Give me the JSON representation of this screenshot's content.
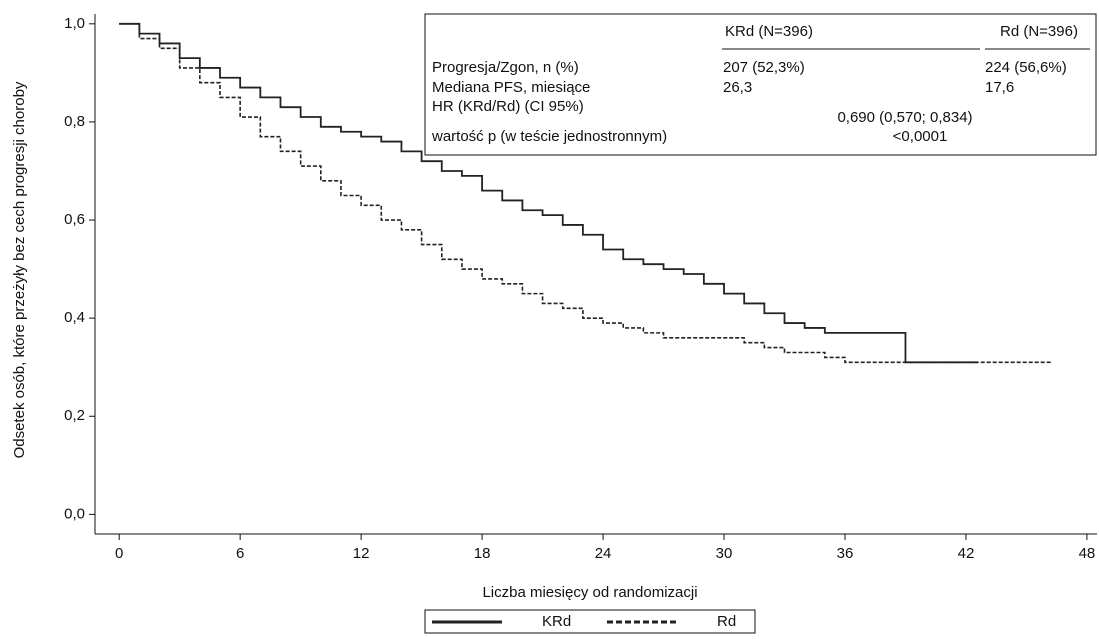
{
  "chart_data": {
    "type": "step",
    "ylabel": "Odsetek osób, które przeżyły bez cech progresji choroby",
    "xlabel": "Liczba miesięcy od randomizacji",
    "xlim": [
      -1.2,
      48.5
    ],
    "ylim": [
      -0.04,
      1.02
    ],
    "xticks": [
      0,
      6,
      12,
      18,
      24,
      30,
      36,
      42,
      48
    ],
    "yticks": [
      {
        "value": 0,
        "label": "0,0"
      },
      {
        "value": 0.2,
        "label": "0,2"
      },
      {
        "value": 0.4,
        "label": "0,4"
      },
      {
        "value": 0.6,
        "label": "0,6"
      },
      {
        "value": 0.8,
        "label": "0,8"
      },
      {
        "value": 1,
        "label": "1,0"
      }
    ],
    "series": [
      {
        "name": "KRd",
        "color": "#222222",
        "dash": "solid",
        "x": [
          0,
          1,
          2,
          3,
          4,
          5,
          6,
          7,
          8,
          9,
          10,
          11,
          12,
          13,
          14,
          15,
          16,
          17,
          18,
          19,
          20,
          21,
          22,
          23,
          24,
          25,
          26,
          27,
          28,
          29,
          30,
          31,
          32,
          33,
          34,
          35,
          36,
          39,
          39,
          42.6
        ],
        "values": [
          1,
          0.98,
          0.96,
          0.93,
          0.91,
          0.89,
          0.87,
          0.85,
          0.83,
          0.81,
          0.79,
          0.78,
          0.77,
          0.76,
          0.74,
          0.72,
          0.7,
          0.69,
          0.66,
          0.64,
          0.62,
          0.61,
          0.59,
          0.57,
          0.54,
          0.52,
          0.51,
          0.5,
          0.49,
          0.47,
          0.45,
          0.43,
          0.41,
          0.39,
          0.38,
          0.37,
          0.37,
          0.37,
          0.31,
          0.31
        ]
      },
      {
        "name": "Rd",
        "color": "#222222",
        "dash": "dashed",
        "x": [
          0,
          1,
          2,
          3,
          4,
          5,
          6,
          7,
          8,
          9,
          10,
          11,
          12,
          13,
          14,
          15,
          16,
          17,
          18,
          19,
          20,
          21,
          22,
          23,
          24,
          25,
          26,
          27,
          30,
          31,
          32,
          33,
          34,
          35,
          36,
          46.3
        ],
        "values": [
          1,
          0.97,
          0.95,
          0.91,
          0.88,
          0.85,
          0.81,
          0.77,
          0.74,
          0.71,
          0.68,
          0.65,
          0.63,
          0.6,
          0.58,
          0.55,
          0.52,
          0.5,
          0.48,
          0.47,
          0.45,
          0.43,
          0.42,
          0.4,
          0.39,
          0.38,
          0.37,
          0.36,
          0.36,
          0.35,
          0.34,
          0.33,
          0.33,
          0.32,
          0.31,
          0.31
        ]
      }
    ],
    "table": {
      "headers": [
        "KRd (N=396)",
        "Rd (N=396)"
      ],
      "rows": [
        [
          "Progresja/Zgon, n (%)",
          "207 (52,3%)",
          "224 (56,6%)"
        ],
        [
          "Mediana PFS, miesiące",
          "26,3",
          "17,6"
        ],
        [
          "HR (KRd/Rd) (CI 95%)",
          "0,690 (0,570; 0,834)"
        ],
        [
          "wartość p (w teście jednostronnym)",
          "<0,0001"
        ]
      ]
    }
  }
}
